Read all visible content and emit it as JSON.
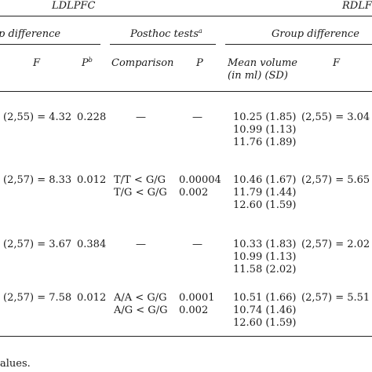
{
  "header": {
    "left_group": "LDLPFC",
    "right_group": "RDLF",
    "left_sub_group": "p difference",
    "posthoc": "Posthoc tests",
    "posthoc_sup": "a",
    "right_sub_group": "Group difference",
    "col_F": "F",
    "col_P": "P",
    "col_P_sup": "b",
    "col_comparison": "Comparison",
    "col_P2": "P",
    "col_mean_line1": "Mean volume",
    "col_mean_line2": "(in ml) (SD)",
    "col_F2": "F"
  },
  "rows": [
    {
      "f_left": "(2,55) = 4.32",
      "p": "0.228",
      "comparison": [
        "—"
      ],
      "posthoc_p": [
        "—"
      ],
      "means": [
        "10.25 (1.85)",
        "10.99 (1.13)",
        "11.76 (1.89)"
      ],
      "f_right": "(2,55) = 3.04"
    },
    {
      "f_left": "(2,57) = 8.33",
      "p": "0.012",
      "comparison": [
        "T/T < G/G",
        "T/G < G/G"
      ],
      "posthoc_p": [
        "0.00004",
        "0.002"
      ],
      "means": [
        "10.46 (1.67)",
        "11.79 (1.44)",
        "12.60 (1.59)"
      ],
      "f_right": "(2,57) = 5.65"
    },
    {
      "f_left": "(2,57) = 3.67",
      "p": "0.384",
      "comparison": [
        "—"
      ],
      "posthoc_p": [
        "—"
      ],
      "means": [
        "10.33 (1.83)",
        "10.99 (1.13)",
        "11.58 (2.02)"
      ],
      "f_right": "(2,57) = 2.02"
    },
    {
      "f_left": "(2,57) = 7.58",
      "p": "0.012",
      "comparison": [
        "A/A < G/G",
        "A/G < G/G"
      ],
      "posthoc_p": [
        "0.0001",
        "0.002"
      ],
      "means": [
        "10.51 (1.66)",
        "10.74 (1.46)",
        "12.60 (1.59)"
      ],
      "f_right": "(2,57) = 5.51"
    }
  ],
  "footnote": "alues."
}
